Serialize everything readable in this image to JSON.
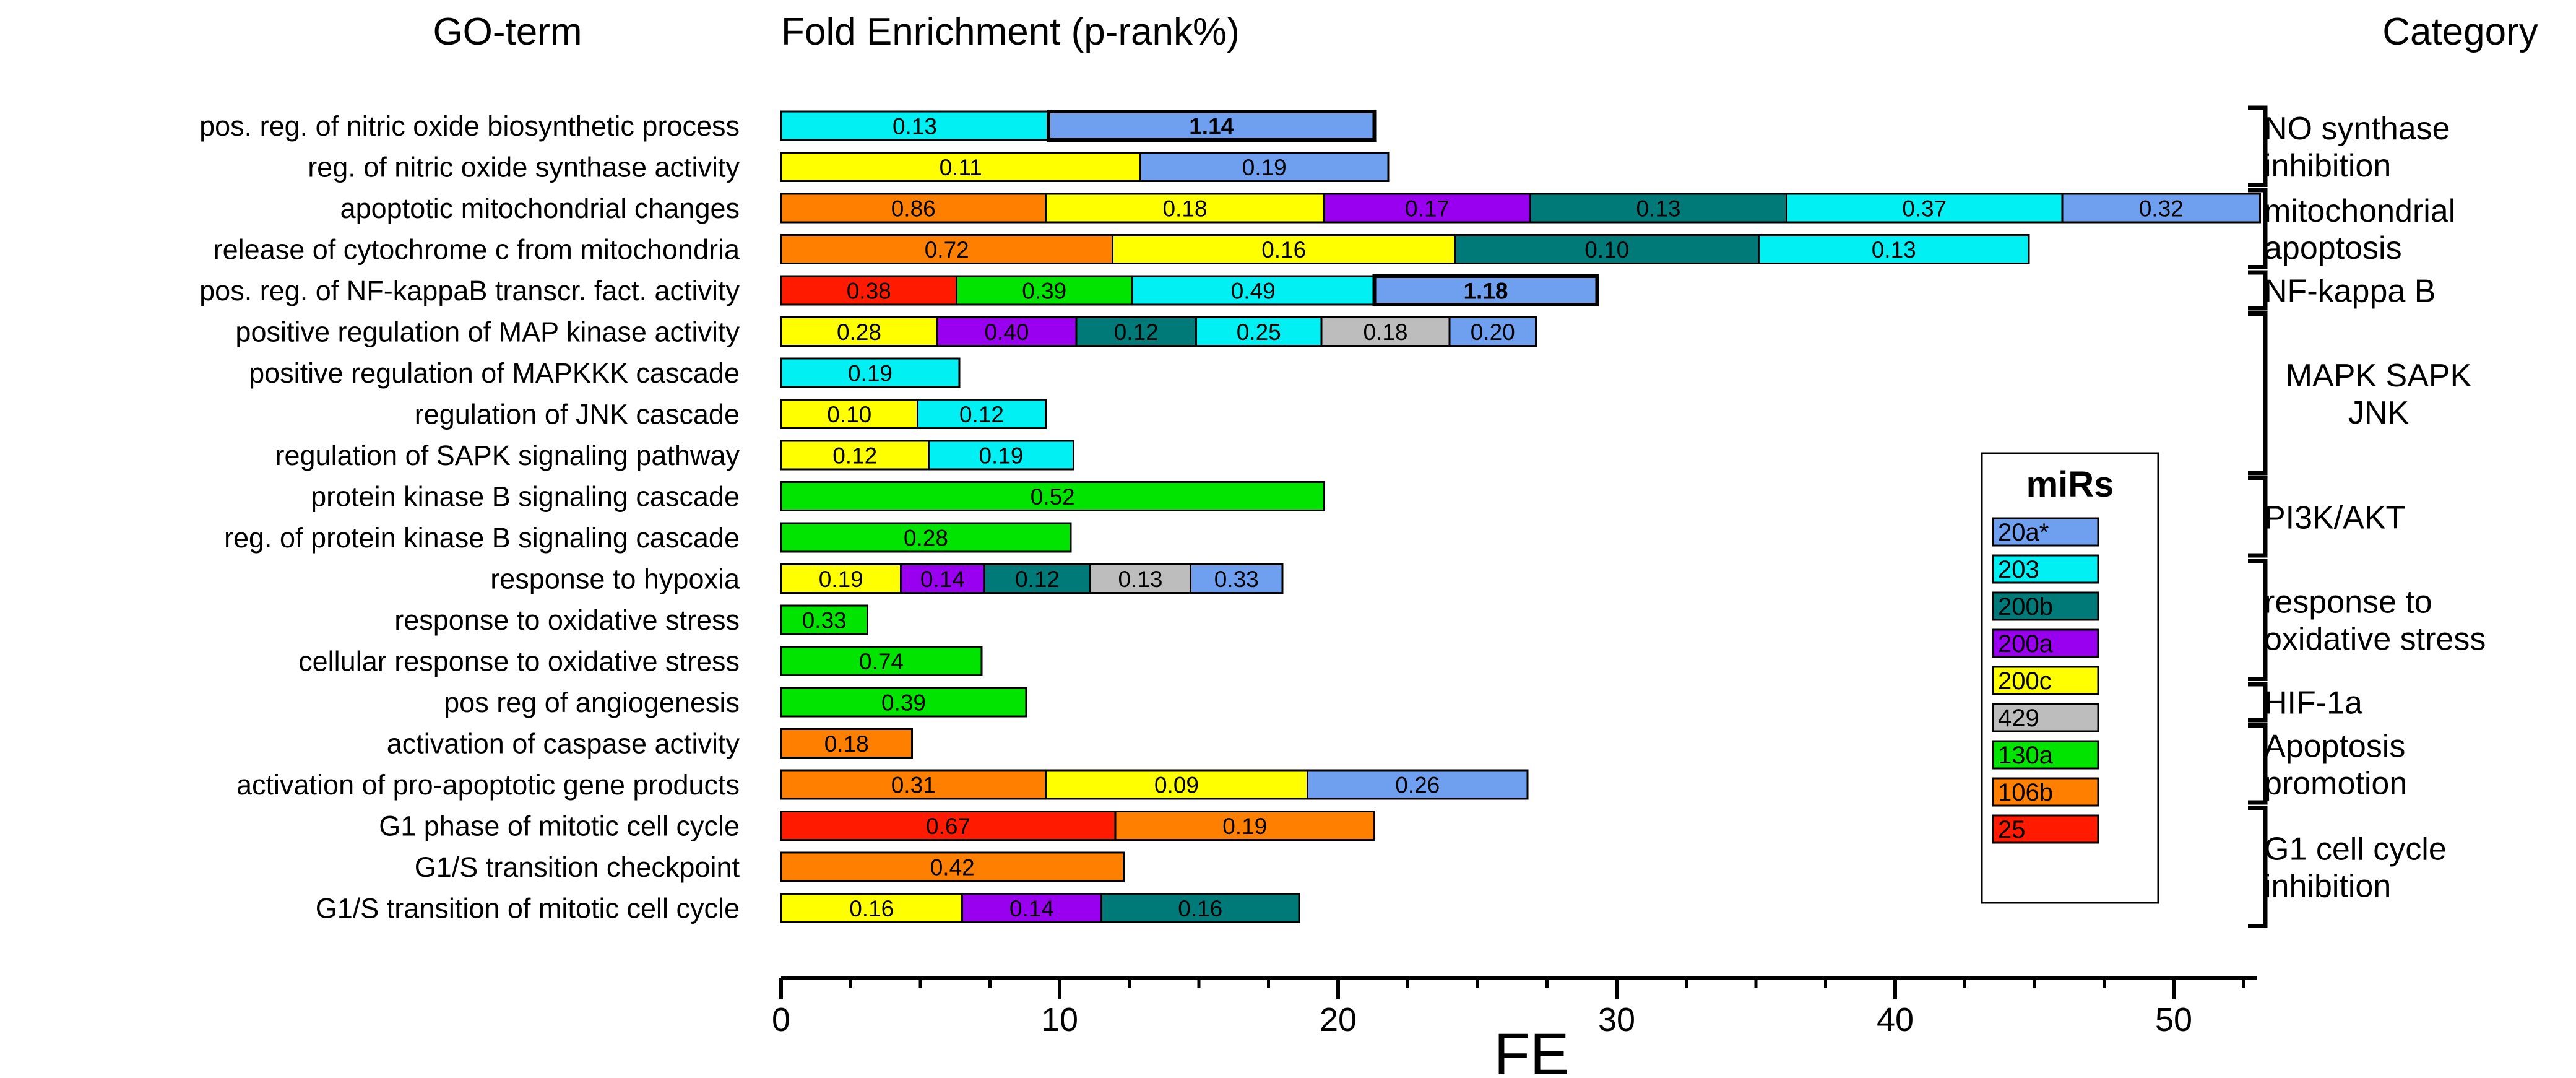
{
  "chart_data": {
    "type": "bar",
    "stacked": true,
    "orientation": "horizontal",
    "headers": {
      "go_term": "GO-term",
      "fold_enrichment": "Fold Enrichment (p-rank%)",
      "category": "Category"
    },
    "xlabel": "FE",
    "xlim": [
      0,
      53
    ],
    "xticks": [
      0,
      10,
      20,
      30,
      40,
      50
    ],
    "legend": {
      "title": "miRs",
      "position": "right",
      "entries": [
        {
          "name": "20a*",
          "color": "#6fa0ef"
        },
        {
          "name": "203",
          "color": "#00f0f4"
        },
        {
          "name": "200b",
          "color": "#007a78"
        },
        {
          "name": "200a",
          "color": "#9a00f0"
        },
        {
          "name": "200c",
          "color": "#ffff00"
        },
        {
          "name": "429",
          "color": "#bdbdbd"
        },
        {
          "name": "130a",
          "color": "#00e400"
        },
        {
          "name": "106b",
          "color": "#ff8000"
        },
        {
          "name": "25",
          "color": "#ff1a00"
        }
      ]
    },
    "rows": [
      {
        "term": "pos. reg. of nitric oxide biosynthetic process",
        "segments": [
          {
            "mir": "203",
            "value": 9.6,
            "label": "0.13"
          },
          {
            "mir": "20a*",
            "value": 11.7,
            "label": "1.14",
            "bold": true
          }
        ]
      },
      {
        "term": "reg. of nitric oxide synthase activity",
        "segments": [
          {
            "mir": "200c",
            "value": 12.9,
            "label": "0.11"
          },
          {
            "mir": "20a*",
            "value": 8.9,
            "label": "0.19"
          }
        ]
      },
      {
        "term": "apoptotic mitochondrial changes",
        "segments": [
          {
            "mir": "106b",
            "value": 9.5,
            "label": "0.86"
          },
          {
            "mir": "200c",
            "value": 10.0,
            "label": "0.18"
          },
          {
            "mir": "200a",
            "value": 7.4,
            "label": "0.17"
          },
          {
            "mir": "200b",
            "value": 9.2,
            "label": "0.13"
          },
          {
            "mir": "203",
            "value": 9.9,
            "label": "0.37"
          },
          {
            "mir": "20a*",
            "value": 7.1,
            "label": "0.32"
          }
        ]
      },
      {
        "term": "release of cytochrome c from mitochondria",
        "segments": [
          {
            "mir": "106b",
            "value": 11.9,
            "label": "0.72"
          },
          {
            "mir": "200c",
            "value": 12.3,
            "label": "0.16"
          },
          {
            "mir": "200b",
            "value": 10.9,
            "label": "0.10"
          },
          {
            "mir": "203",
            "value": 9.7,
            "label": "0.13"
          }
        ]
      },
      {
        "term": "pos. reg. of NF-kappaB transcr. fact. activity",
        "segments": [
          {
            "mir": "25",
            "value": 6.3,
            "label": "0.38"
          },
          {
            "mir": "130a",
            "value": 6.3,
            "label": "0.39"
          },
          {
            "mir": "203",
            "value": 8.7,
            "label": "0.49"
          },
          {
            "mir": "20a*",
            "value": 8.0,
            "label": "1.18",
            "bold": true
          }
        ]
      },
      {
        "term": "positive regulation of MAP kinase activity",
        "segments": [
          {
            "mir": "200c",
            "value": 5.6,
            "label": "0.28"
          },
          {
            "mir": "200a",
            "value": 5.0,
            "label": "0.40"
          },
          {
            "mir": "200b",
            "value": 4.3,
            "label": "0.12"
          },
          {
            "mir": "203",
            "value": 4.5,
            "label": "0.25"
          },
          {
            "mir": "429",
            "value": 4.6,
            "label": "0.18"
          },
          {
            "mir": "20a*",
            "value": 3.1,
            "label": "0.20"
          }
        ]
      },
      {
        "term": "positive regulation of MAPKKK cascade",
        "segments": [
          {
            "mir": "203",
            "value": 6.4,
            "label": "0.19"
          }
        ]
      },
      {
        "term": "regulation of JNK cascade",
        "segments": [
          {
            "mir": "200c",
            "value": 4.9,
            "label": "0.10"
          },
          {
            "mir": "203",
            "value": 4.6,
            "label": "0.12"
          }
        ]
      },
      {
        "term": "regulation of SAPK signaling pathway",
        "segments": [
          {
            "mir": "200c",
            "value": 5.3,
            "label": "0.12"
          },
          {
            "mir": "203",
            "value": 5.2,
            "label": "0.19"
          }
        ]
      },
      {
        "term": "protein kinase B signaling cascade",
        "segments": [
          {
            "mir": "130a",
            "value": 19.5,
            "label": "0.52"
          }
        ]
      },
      {
        "term": "reg. of protein kinase B signaling cascade",
        "segments": [
          {
            "mir": "130a",
            "value": 10.4,
            "label": "0.28"
          }
        ]
      },
      {
        "term": "response to hypoxia",
        "segments": [
          {
            "mir": "200c",
            "value": 4.3,
            "label": "0.19"
          },
          {
            "mir": "200a",
            "value": 3.0,
            "label": "0.14"
          },
          {
            "mir": "200b",
            "value": 3.8,
            "label": "0.12"
          },
          {
            "mir": "429",
            "value": 3.6,
            "label": "0.13"
          },
          {
            "mir": "20a*",
            "value": 3.3,
            "label": "0.33"
          }
        ]
      },
      {
        "term": "response to oxidative stress",
        "segments": [
          {
            "mir": "130a",
            "value": 3.1,
            "label": "0.33"
          }
        ]
      },
      {
        "term": "cellular response to oxidative stress",
        "segments": [
          {
            "mir": "130a",
            "value": 7.2,
            "label": "0.74"
          }
        ]
      },
      {
        "term": "pos reg of angiogenesis",
        "segments": [
          {
            "mir": "130a",
            "value": 8.8,
            "label": "0.39"
          }
        ]
      },
      {
        "term": "activation of caspase activity",
        "segments": [
          {
            "mir": "106b",
            "value": 4.7,
            "label": "0.18"
          }
        ]
      },
      {
        "term": "activation of pro-apoptotic gene products",
        "segments": [
          {
            "mir": "106b",
            "value": 9.5,
            "label": "0.31"
          },
          {
            "mir": "200c",
            "value": 9.4,
            "label": "0.09"
          },
          {
            "mir": "20a*",
            "value": 7.9,
            "label": "0.26"
          }
        ]
      },
      {
        "term": "G1 phase of mitotic cell cycle",
        "segments": [
          {
            "mir": "25",
            "value": 12.0,
            "label": "0.67"
          },
          {
            "mir": "106b",
            "value": 9.3,
            "label": "0.19"
          }
        ]
      },
      {
        "term": "G1/S transition checkpoint",
        "segments": [
          {
            "mir": "106b",
            "value": 12.3,
            "label": "0.42"
          }
        ]
      },
      {
        "term": "G1/S transition of mitotic cell cycle",
        "segments": [
          {
            "mir": "200c",
            "value": 6.5,
            "label": "0.16"
          },
          {
            "mir": "200a",
            "value": 5.0,
            "label": "0.14"
          },
          {
            "mir": "200b",
            "value": 7.1,
            "label": "0.16"
          }
        ]
      }
    ],
    "categories": [
      {
        "lines": [
          "NO synthase",
          "inhibition"
        ],
        "rows": [
          0,
          1
        ],
        "align": "start"
      },
      {
        "lines": [
          "mitochondrial",
          "apoptosis"
        ],
        "rows": [
          2,
          3
        ],
        "align": "start"
      },
      {
        "lines": [
          "NF-kappa B"
        ],
        "rows": [
          4,
          4
        ],
        "align": "start"
      },
      {
        "lines": [
          "MAPK  SAPK",
          "JNK"
        ],
        "rows": [
          5,
          8
        ],
        "align": "middle"
      },
      {
        "lines": [
          "PI3K/AKT"
        ],
        "rows": [
          9,
          10
        ],
        "align": "start"
      },
      {
        "lines": [
          "response to",
          "oxidative stress"
        ],
        "rows": [
          11,
          13
        ],
        "align": "start"
      },
      {
        "lines": [
          "HIF-1a"
        ],
        "rows": [
          14,
          14
        ],
        "align": "start"
      },
      {
        "lines": [
          "Apoptosis",
          "promotion"
        ],
        "rows": [
          15,
          16
        ],
        "align": "start"
      },
      {
        "lines": [
          "G1 cell cycle",
          "inhibition"
        ],
        "rows": [
          17,
          19
        ],
        "align": "start"
      }
    ]
  }
}
